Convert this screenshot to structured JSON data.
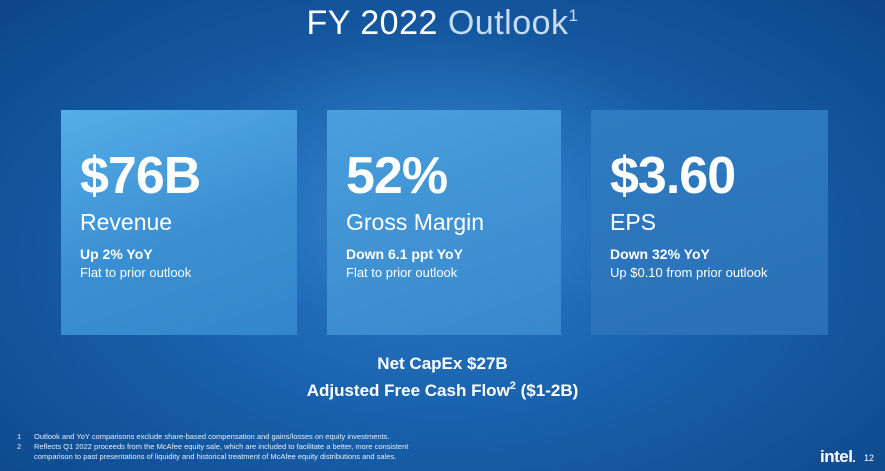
{
  "slide": {
    "title_main": "FY 2022",
    "title_accent": "Outlook",
    "title_ref": "1"
  },
  "cards": [
    {
      "value": "$76B",
      "label": "Revenue",
      "change": "Up 2% YoY",
      "note": "Flat to prior outlook"
    },
    {
      "value": "52%",
      "label": "Gross Margin",
      "change": "Down 6.1 ppt YoY",
      "note": "Flat to prior outlook"
    },
    {
      "value": "$3.60",
      "label": "EPS",
      "change": "Down 32% YoY",
      "note": "Up $0.10 from prior outlook"
    }
  ],
  "summary": {
    "capex": "Net CapEx $27B",
    "fcf_label": "Adjusted Free Cash Flow",
    "fcf_ref": "2",
    "fcf_value": " ($1-2B)"
  },
  "footnotes": [
    {
      "num": "1",
      "lines": [
        "Outlook and YoY comparisons exclude share-based compensation and gains/losses on equity investments."
      ]
    },
    {
      "num": "2",
      "lines": [
        "Reflects Q1 2022 proceeds from the McAfee equity sale, which are included to facilitate a better, more consistent",
        "comparison to past presentations of liquidity and historical treatment of McAfee equity distributions and sales."
      ]
    }
  ],
  "logo": {
    "text": "intel",
    "dot": "."
  },
  "page_number": "12",
  "colors": {
    "background": "#1860ab",
    "title_accent": "#c8ddf4",
    "card1": "#4aa3e0",
    "card2": "#3f93d4",
    "card3": "#2d76bd"
  }
}
